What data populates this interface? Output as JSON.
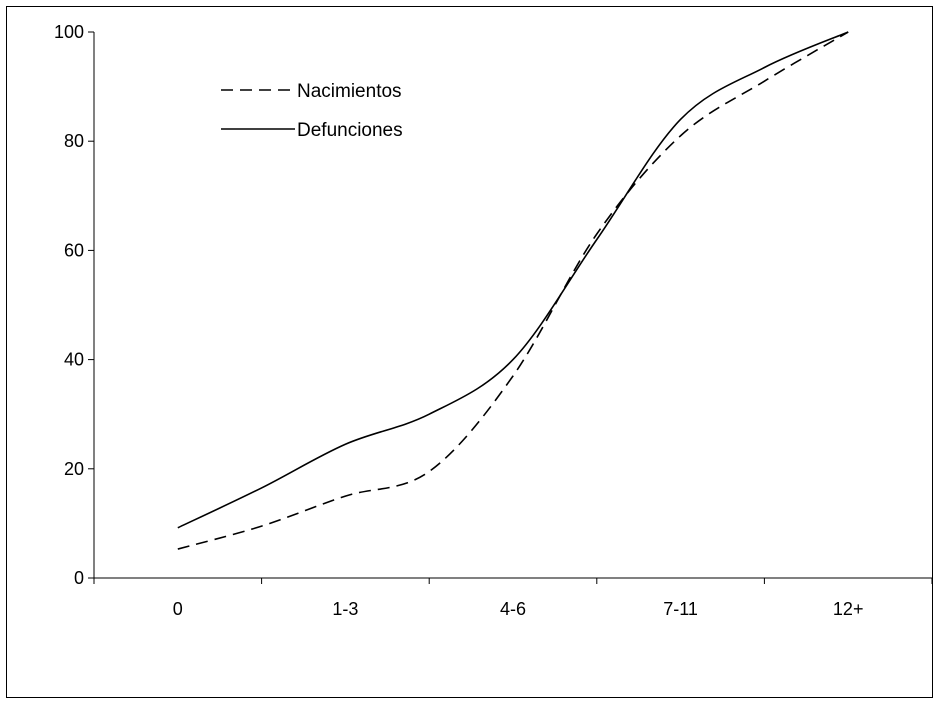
{
  "chart_data": {
    "type": "line",
    "title": "",
    "xlabel": "",
    "ylabel": "",
    "categories": [
      "0",
      "1-3",
      "4-6",
      "7-11",
      "12+"
    ],
    "ylim": [
      0,
      100
    ],
    "yticks": [
      0,
      20,
      40,
      60,
      80,
      100
    ],
    "grid": false,
    "legend_position": "top-left",
    "series": [
      {
        "name": "Nacimientos",
        "style": "dashed",
        "color": "#000000",
        "x": [
          0,
          0.5,
          1,
          1.5,
          2,
          2.5,
          3,
          3.5,
          4
        ],
        "values": [
          5.3,
          9.5,
          15.0,
          19.5,
          37.0,
          63.0,
          81.0,
          91.0,
          100
        ]
      },
      {
        "name": "Defunciones",
        "style": "solid",
        "color": "#000000",
        "x": [
          0,
          0.5,
          1,
          1.5,
          2,
          2.5,
          3,
          3.5,
          4
        ],
        "values": [
          9.2,
          16.5,
          24.5,
          30.0,
          40.0,
          62.0,
          84.0,
          93.5,
          100
        ]
      }
    ]
  }
}
